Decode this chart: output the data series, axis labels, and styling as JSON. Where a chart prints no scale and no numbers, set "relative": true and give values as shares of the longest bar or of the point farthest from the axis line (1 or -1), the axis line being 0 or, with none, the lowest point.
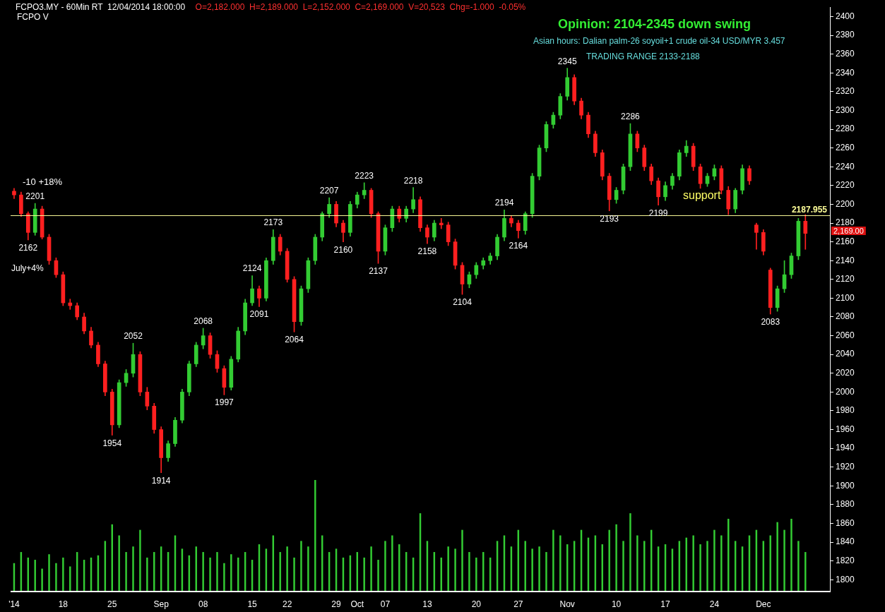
{
  "chart_data": [
    {
      "type": "candlestick",
      "title": "Opinion: 2104-2345 down swing",
      "subtitle": "Asian hours: Dalian palm-26 soyoil+1 crude oil-34 USD/MYR 3.457",
      "categories": [
        "'14",
        null,
        null,
        null,
        null,
        null,
        null,
        "18",
        null,
        null,
        null,
        null,
        null,
        null,
        "25",
        null,
        null,
        null,
        null,
        null,
        null,
        "Sep",
        null,
        null,
        null,
        null,
        null,
        "08",
        null,
        null,
        null,
        null,
        null,
        null,
        "15",
        null,
        null,
        null,
        null,
        "22",
        null,
        null,
        null,
        null,
        null,
        null,
        "29",
        null,
        null,
        "Oct",
        null,
        null,
        null,
        "07",
        null,
        null,
        null,
        null,
        null,
        "13",
        null,
        null,
        null,
        null,
        null,
        null,
        "20",
        null,
        null,
        null,
        null,
        null,
        "27",
        null,
        null,
        null,
        null,
        null,
        null,
        "Nov",
        null,
        null,
        null,
        null,
        null,
        null,
        "10",
        null,
        null,
        null,
        null,
        null,
        null,
        "17",
        null,
        null,
        null,
        null,
        null,
        null,
        "24",
        null,
        null,
        null,
        null,
        null,
        null,
        "Dec",
        null,
        null,
        null,
        null,
        null,
        null,
        null,
        null,
        null
      ],
      "ohlc": [
        [
          2214,
          2217,
          2206,
          2210
        ],
        [
          2210,
          2213,
          2187,
          2190
        ],
        [
          2190,
          2192,
          2162,
          2170
        ],
        [
          2170,
          2201,
          2167,
          2195
        ],
        [
          2195,
          2198,
          2163,
          2165
        ],
        [
          2165,
          2168,
          2136,
          2140
        ],
        [
          2140,
          2143,
          2122,
          2125
        ],
        [
          2125,
          2128,
          2092,
          2095
        ],
        [
          2095,
          2099,
          2088,
          2092
        ],
        [
          2092,
          2095,
          2077,
          2080
        ],
        [
          2080,
          2084,
          2062,
          2065
        ],
        [
          2065,
          2069,
          2047,
          2050
        ],
        [
          2050,
          2053,
          2027,
          2030
        ],
        [
          2030,
          2033,
          1996,
          2000
        ],
        [
          2000,
          2003,
          1954,
          1965
        ],
        [
          1965,
          2013,
          1962,
          2010
        ],
        [
          2010,
          2024,
          2006,
          2020
        ],
        [
          2020,
          2052,
          2016,
          2040
        ],
        [
          2040,
          2043,
          1996,
          2000
        ],
        [
          2000,
          2005,
          1981,
          1985
        ],
        [
          1985,
          1988,
          1956,
          1960
        ],
        [
          1960,
          1963,
          1914,
          1930
        ],
        [
          1930,
          1948,
          1926,
          1945
        ],
        [
          1945,
          1973,
          1942,
          1970
        ],
        [
          1970,
          2003,
          1967,
          2000
        ],
        [
          2000,
          2033,
          1996,
          2030
        ],
        [
          2030,
          2053,
          2027,
          2050
        ],
        [
          2050,
          2068,
          2046,
          2060
        ],
        [
          2060,
          2063,
          2036,
          2040
        ],
        [
          2040,
          2044,
          2021,
          2025
        ],
        [
          2025,
          2028,
          1997,
          2005
        ],
        [
          2005,
          2038,
          2002,
          2035
        ],
        [
          2035,
          2069,
          2032,
          2065
        ],
        [
          2065,
          2099,
          2061,
          2095
        ],
        [
          2095,
          2124,
          2092,
          2110
        ],
        [
          2110,
          2113,
          2091,
          2100
        ],
        [
          2100,
          2143,
          2097,
          2140
        ],
        [
          2140,
          2173,
          2136,
          2165
        ],
        [
          2165,
          2168,
          2146,
          2150
        ],
        [
          2150,
          2153,
          2117,
          2120
        ],
        [
          2120,
          2123,
          2064,
          2075
        ],
        [
          2075,
          2113,
          2071,
          2110
        ],
        [
          2110,
          2143,
          2106,
          2140
        ],
        [
          2140,
          2168,
          2136,
          2165
        ],
        [
          2165,
          2192,
          2161,
          2190
        ],
        [
          2190,
          2207,
          2186,
          2200
        ],
        [
          2200,
          2203,
          2176,
          2180
        ],
        [
          2180,
          2183,
          2160,
          2170
        ],
        [
          2170,
          2203,
          2166,
          2200
        ],
        [
          2200,
          2213,
          2196,
          2210
        ],
        [
          2210,
          2223,
          2206,
          2215
        ],
        [
          2215,
          2217,
          2186,
          2190
        ],
        [
          2190,
          2192,
          2137,
          2150
        ],
        [
          2150,
          2178,
          2146,
          2175
        ],
        [
          2175,
          2198,
          2171,
          2195
        ],
        [
          2195,
          2198,
          2181,
          2185
        ],
        [
          2185,
          2198,
          2181,
          2195
        ],
        [
          2195,
          2218,
          2191,
          2205
        ],
        [
          2205,
          2208,
          2171,
          2175
        ],
        [
          2175,
          2178,
          2158,
          2165
        ],
        [
          2165,
          2183,
          2161,
          2180
        ],
        [
          2180,
          2185,
          2174,
          2178
        ],
        [
          2178,
          2181,
          2156,
          2160
        ],
        [
          2160,
          2163,
          2131,
          2135
        ],
        [
          2135,
          2138,
          2104,
          2115
        ],
        [
          2115,
          2128,
          2111,
          2125
        ],
        [
          2125,
          2138,
          2121,
          2135
        ],
        [
          2135,
          2143,
          2131,
          2140
        ],
        [
          2140,
          2148,
          2136,
          2145
        ],
        [
          2145,
          2168,
          2141,
          2165
        ],
        [
          2165,
          2194,
          2161,
          2185
        ],
        [
          2185,
          2188,
          2176,
          2180
        ],
        [
          2180,
          2183,
          2164,
          2172
        ],
        [
          2172,
          2192,
          2168,
          2190
        ],
        [
          2190,
          2233,
          2186,
          2230
        ],
        [
          2230,
          2263,
          2226,
          2260
        ],
        [
          2260,
          2288,
          2256,
          2285
        ],
        [
          2285,
          2298,
          2281,
          2295
        ],
        [
          2295,
          2318,
          2291,
          2315
        ],
        [
          2315,
          2345,
          2311,
          2335
        ],
        [
          2335,
          2338,
          2306,
          2310
        ],
        [
          2310,
          2313,
          2291,
          2295
        ],
        [
          2295,
          2298,
          2271,
          2275
        ],
        [
          2275,
          2278,
          2251,
          2255
        ],
        [
          2255,
          2258,
          2226,
          2230
        ],
        [
          2230,
          2233,
          2193,
          2205
        ],
        [
          2205,
          2218,
          2201,
          2215
        ],
        [
          2215,
          2243,
          2211,
          2240
        ],
        [
          2240,
          2286,
          2236,
          2275
        ],
        [
          2275,
          2278,
          2256,
          2260
        ],
        [
          2260,
          2263,
          2236,
          2240
        ],
        [
          2240,
          2243,
          2221,
          2225
        ],
        [
          2225,
          2228,
          2199,
          2208
        ],
        [
          2208,
          2224,
          2204,
          2220
        ],
        [
          2220,
          2233,
          2216,
          2230
        ],
        [
          2230,
          2258,
          2226,
          2255
        ],
        [
          2255,
          2268,
          2251,
          2262
        ],
        [
          2262,
          2265,
          2236,
          2240
        ],
        [
          2240,
          2243,
          2217,
          2222
        ],
        [
          2222,
          2233,
          2219,
          2230
        ],
        [
          2230,
          2242,
          2226,
          2238
        ],
        [
          2238,
          2241,
          2211,
          2215
        ],
        [
          2215,
          2219,
          2189,
          2195
        ],
        [
          2195,
          2217,
          2191,
          2215
        ],
        [
          2215,
          2242,
          2211,
          2238
        ],
        [
          2238,
          2241,
          2221,
          2225
        ],
        [
          2178,
          2180,
          2152,
          2170
        ],
        [
          2170,
          2173,
          2146,
          2150
        ],
        [
          2130,
          2132,
          2083,
          2090
        ],
        [
          2090,
          2113,
          2086,
          2110
        ],
        [
          2110,
          2140,
          2106,
          2125
        ],
        [
          2125,
          2148,
          2121,
          2145
        ],
        [
          2145,
          2185,
          2141,
          2182
        ],
        [
          2182,
          2189,
          2152,
          2169
        ],
        null,
        null,
        null
      ],
      "colors": [
        "#ff2020",
        "#ff2020",
        "#ff2020",
        "#33cc33",
        "#ff2020",
        "#ff2020",
        "#ff2020",
        "#ff2020",
        "#ff2020",
        "#ff2020",
        "#ff2020",
        "#ff2020",
        "#ff2020",
        "#ff2020",
        "#ff2020",
        "#33cc33",
        "#33cc33",
        "#33cc33",
        "#ff2020",
        "#ff2020",
        "#ff2020",
        "#ff2020",
        "#33cc33",
        "#33cc33",
        "#33cc33",
        "#33cc33",
        "#33cc33",
        "#33cc33",
        "#ff2020",
        "#ff2020",
        "#ff2020",
        "#33cc33",
        "#33cc33",
        "#33cc33",
        "#33cc33",
        "#ff2020",
        "#33cc33",
        "#33cc33",
        "#ff2020",
        "#ff2020",
        "#ff2020",
        "#33cc33",
        "#33cc33",
        "#33cc33",
        "#33cc33",
        "#33cc33",
        "#ff2020",
        "#ff2020",
        "#33cc33",
        "#33cc33",
        "#33cc33",
        "#ff2020",
        "#ff2020",
        "#33cc33",
        "#33cc33",
        "#ff2020",
        "#33cc33",
        "#33cc33",
        "#ff2020",
        "#ff2020",
        "#33cc33",
        "#ff2020",
        "#ff2020",
        "#ff2020",
        "#ff2020",
        "#33cc33",
        "#33cc33",
        "#33cc33",
        "#33cc33",
        "#33cc33",
        "#33cc33",
        "#ff2020",
        "#ff2020",
        "#33cc33",
        "#33cc33",
        "#33cc33",
        "#33cc33",
        "#33cc33",
        "#33cc33",
        "#33cc33",
        "#ff2020",
        "#ff2020",
        "#ff2020",
        "#ff2020",
        "#ff2020",
        "#ff2020",
        "#33cc33",
        "#33cc33",
        "#33cc33",
        "#ff2020",
        "#ff2020",
        "#ff2020",
        "#ff2020",
        "#33cc33",
        "#33cc33",
        "#33cc33",
        "#33cc33",
        "#ff2020",
        "#ff2020",
        "#33cc33",
        "#33cc33",
        "#ff2020",
        "#ff2020",
        "#33cc33",
        "#33cc33",
        "#ff2020",
        "#ff2020",
        "#ff2020",
        "#ff2020",
        "#33cc33",
        "#33cc33",
        "#33cc33",
        "#33cc33",
        "#ff2020",
        null,
        null,
        null
      ],
      "ylim": [
        1787,
        2410
      ],
      "yticks": [
        1800,
        1820,
        1840,
        1860,
        1880,
        1900,
        1920,
        1940,
        1960,
        1980,
        2000,
        2020,
        2040,
        2060,
        2080,
        2100,
        2120,
        2140,
        2160,
        2180,
        2200,
        2220,
        2240,
        2260,
        2280,
        2300,
        2320,
        2340,
        2360,
        2380,
        2400
      ],
      "ref_lines": [
        {
          "axis": "y",
          "value": 2187.955,
          "label": "2187.955",
          "color": "#ffff99"
        }
      ],
      "annotations": [
        "FCPO3.MY - 60Min RT  12/04/2014 18:00:00",
        "O=2,182.000  H=2,189.000  L=2,152.000  C=2,169.000  V=20,523  Chg=-1.000  -0.05%",
        "FCPO V",
        "TRADING RANGE 2133-2188",
        "-10 +18%",
        "July+4%",
        "support",
        {
          "text": "2201",
          "y": 2201
        },
        {
          "text": "2162",
          "y": 2162
        },
        {
          "text": "2052",
          "y": 2052
        },
        {
          "text": "1954",
          "y": 1954
        },
        {
          "text": "1914",
          "y": 1914
        },
        {
          "text": "2068",
          "y": 2068
        },
        {
          "text": "1997",
          "y": 1997
        },
        {
          "text": "2124",
          "y": 2124
        },
        {
          "text": "2091",
          "y": 2091
        },
        {
          "text": "2173",
          "y": 2173
        },
        {
          "text": "2064",
          "y": 2064
        },
        {
          "text": "2207",
          "y": 2207
        },
        {
          "text": "2160",
          "y": 2160
        },
        {
          "text": "2223",
          "y": 2223
        },
        {
          "text": "2137",
          "y": 2137
        },
        {
          "text": "2218",
          "y": 2218
        },
        {
          "text": "2158",
          "y": 2158
        },
        {
          "text": "2104",
          "y": 2104
        },
        {
          "text": "2194",
          "y": 2194
        },
        {
          "text": "2164",
          "y": 2164
        },
        {
          "text": "2345",
          "y": 2345
        },
        {
          "text": "2193",
          "y": 2193
        },
        {
          "text": "2286",
          "y": 2286
        },
        {
          "text": "2199",
          "y": 2199
        },
        {
          "text": "2083",
          "y": 2083
        },
        "2,169.00"
      ]
    },
    {
      "type": "bar",
      "relative": true,
      "color": "#33cc33",
      "categories": [
        null,
        null,
        null,
        null,
        null,
        null,
        null,
        null,
        null,
        null,
        null,
        null,
        null,
        null,
        null,
        null,
        null,
        null,
        null,
        null,
        null,
        null,
        null,
        null,
        null,
        null,
        null,
        null,
        null,
        null,
        null,
        null,
        null,
        null,
        null,
        null,
        null,
        null,
        null,
        null,
        null,
        null,
        null,
        null,
        null,
        null,
        null,
        null,
        null,
        null,
        null,
        null,
        null,
        null,
        null,
        null,
        null,
        null,
        null,
        null,
        null,
        null,
        null,
        null,
        null,
        null,
        null,
        null,
        null,
        null,
        null,
        null,
        null,
        null,
        null,
        null,
        null,
        null,
        null,
        null,
        null,
        null,
        null,
        null,
        null,
        null,
        null,
        null,
        null,
        null,
        null,
        null,
        null,
        null,
        null,
        null,
        null,
        null,
        null,
        null,
        null,
        null,
        null,
        null,
        null,
        null,
        null,
        null,
        null,
        null,
        null,
        null,
        null,
        null,
        null,
        null,
        null
      ],
      "values": [
        0.25,
        0.35,
        0.3,
        0.28,
        0.2,
        0.33,
        0.25,
        0.3,
        0.22,
        0.35,
        0.28,
        0.3,
        0.32,
        0.45,
        0.6,
        0.5,
        0.35,
        0.4,
        0.55,
        0.3,
        0.35,
        0.4,
        0.35,
        0.5,
        0.38,
        0.32,
        0.4,
        0.35,
        0.3,
        0.35,
        0.25,
        0.33,
        0.3,
        0.35,
        0.28,
        0.42,
        0.38,
        0.5,
        0.35,
        0.4,
        0.3,
        0.45,
        0.4,
        1.0,
        0.5,
        0.35,
        0.38,
        0.3,
        0.32,
        0.35,
        0.3,
        0.4,
        0.28,
        0.45,
        0.5,
        0.42,
        0.35,
        0.3,
        0.7,
        0.45,
        0.35,
        0.3,
        0.4,
        0.38,
        0.55,
        0.35,
        0.3,
        0.35,
        0.3,
        0.45,
        0.5,
        0.4,
        0.55,
        0.45,
        0.38,
        0.4,
        0.35,
        0.55,
        0.5,
        0.42,
        0.45,
        0.55,
        0.48,
        0.5,
        0.42,
        0.55,
        0.6,
        0.45,
        0.7,
        0.5,
        0.45,
        0.55,
        0.4,
        0.42,
        0.38,
        0.45,
        0.48,
        0.5,
        0.42,
        0.45,
        0.55,
        0.5,
        0.65,
        0.45,
        0.4,
        0.5,
        0.55,
        0.45,
        0.5,
        0.62,
        0.55,
        0.65,
        0.45,
        0.35,
        null,
        null,
        null
      ]
    }
  ]
}
